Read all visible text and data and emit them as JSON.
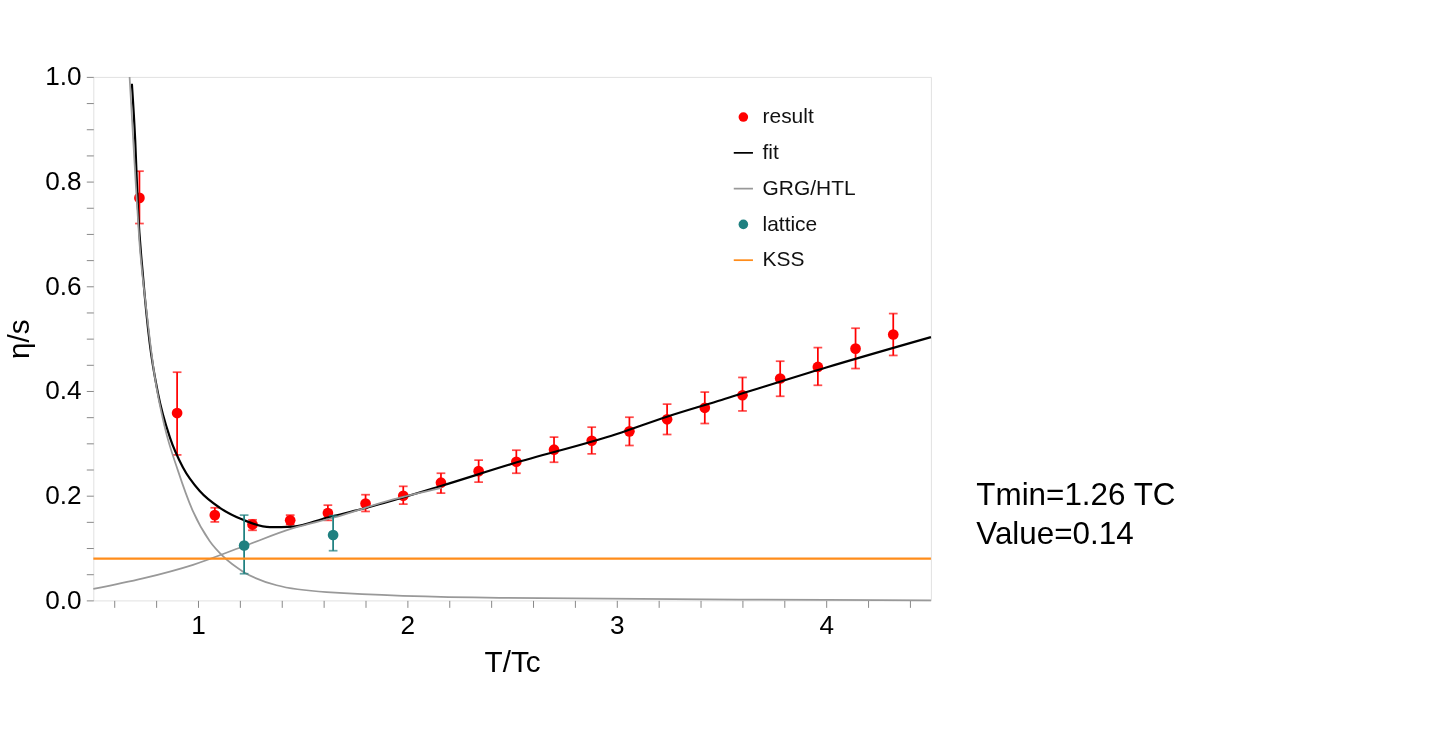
{
  "chart_data": {
    "type": "line",
    "xlabel": "T/Tc",
    "ylabel": "η/s",
    "xlim": [
      0.5,
      4.5
    ],
    "ylim": [
      0,
      1.0
    ],
    "xticks": [
      {
        "value": 0.6,
        "label": null
      },
      {
        "value": 0.8,
        "label": null
      },
      1,
      {
        "value": 1.2,
        "label": null
      },
      {
        "value": 1.4,
        "label": null
      },
      {
        "value": 1.6,
        "label": null
      },
      {
        "value": 1.8,
        "label": null
      },
      2,
      {
        "value": 2.2,
        "label": null
      },
      {
        "value": 2.4,
        "label": null
      },
      {
        "value": 2.6,
        "label": null
      },
      {
        "value": 2.8,
        "label": null
      },
      3,
      {
        "value": 3.2,
        "label": null
      },
      {
        "value": 3.4,
        "label": null
      },
      {
        "value": 3.6,
        "label": null
      },
      {
        "value": 3.8,
        "label": null
      },
      4,
      {
        "value": 4.2,
        "label": null
      },
      {
        "value": 4.4,
        "label": null
      }
    ],
    "yticks": [
      {
        "value": 0,
        "label": "0.0"
      },
      {
        "value": 0.05,
        "label": null
      },
      {
        "value": 0.1,
        "label": null
      },
      {
        "value": 0.15,
        "label": null
      },
      0.2,
      {
        "value": 0.25,
        "label": null
      },
      {
        "value": 0.3,
        "label": null
      },
      {
        "value": 0.35,
        "label": null
      },
      0.4,
      {
        "value": 0.45,
        "label": null
      },
      {
        "value": 0.5,
        "label": null
      },
      {
        "value": 0.55,
        "label": null
      },
      0.6,
      {
        "value": 0.65,
        "label": null
      },
      {
        "value": 0.7,
        "label": null
      },
      {
        "value": 0.75,
        "label": null
      },
      0.8,
      {
        "value": 0.85,
        "label": null
      },
      {
        "value": 0.9,
        "label": null
      },
      {
        "value": 0.95,
        "label": null
      },
      {
        "value": 1.0,
        "label": "1.0"
      }
    ],
    "grid": false,
    "legend": "top right",
    "line_style": "solid",
    "series": [
      {
        "name": "result",
        "type": "scatter",
        "marker": "circle",
        "color": "#ff0000",
        "x": [
          0.72,
          0.9,
          1.08,
          1.26,
          1.44,
          1.62,
          1.8,
          1.98,
          2.16,
          2.34,
          2.52,
          2.7,
          2.88,
          3.06,
          3.24,
          3.42,
          3.6,
          3.78,
          3.96,
          4.14,
          4.32
        ],
        "values": [
          0.769,
          0.358,
          0.163,
          0.145,
          0.153,
          0.167,
          0.185,
          0.2,
          0.225,
          0.247,
          0.265,
          0.288,
          0.305,
          0.323,
          0.346,
          0.368,
          0.392,
          0.424,
          0.446,
          0.481,
          0.508
        ],
        "errors": [
          [
            0.72,
            0.82
          ],
          [
            0.278,
            0.436
          ],
          [
            0.15,
            0.177
          ],
          [
            0.134,
            0.154
          ],
          [
            0.145,
            0.163
          ],
          [
            0.153,
            0.182
          ],
          [
            0.17,
            0.202
          ],
          [
            0.184,
            0.218
          ],
          [
            0.205,
            0.243
          ],
          [
            0.226,
            0.268
          ],
          [
            0.243,
            0.287
          ],
          [
            0.264,
            0.312
          ],
          [
            0.28,
            0.331
          ],
          [
            0.296,
            0.35
          ],
          [
            0.317,
            0.375
          ],
          [
            0.338,
            0.398
          ],
          [
            0.362,
            0.426
          ],
          [
            0.39,
            0.457
          ],
          [
            0.411,
            0.483
          ],
          [
            0.443,
            0.52
          ],
          [
            0.468,
            0.548
          ]
        ]
      },
      {
        "name": "fit",
        "color": "#000000",
        "x": [
          0.684,
          0.7,
          0.713,
          0.737,
          0.769,
          0.809,
          0.865,
          0.928,
          1.008,
          1.104,
          1.215,
          1.343,
          1.454,
          1.614,
          1.805,
          2.163,
          2.5,
          3.0,
          3.239,
          3.5,
          4.0,
          4.5
        ],
        "values": [
          0.987,
          0.878,
          0.749,
          0.62,
          0.492,
          0.395,
          0.312,
          0.254,
          0.209,
          0.177,
          0.154,
          0.14,
          0.141,
          0.158,
          0.177,
          0.219,
          0.261,
          0.318,
          0.351,
          0.383,
          0.445,
          0.503
        ]
      },
      {
        "name": "GRG/HTL",
        "color": "#999999",
        "x": [
          0.673,
          0.7,
          0.72,
          0.753,
          0.793,
          0.841,
          0.904,
          0.976,
          1.056,
          1.12,
          1.215,
          1.375,
          1.614,
          2.44,
          4.0,
          4.5
        ],
        "values": [
          1.0,
          0.813,
          0.685,
          0.556,
          0.428,
          0.331,
          0.248,
          0.17,
          0.113,
          0.084,
          0.055,
          0.029,
          0.016,
          0.005,
          0.001,
          0.0
        ]
      },
      {
        "color": "#999999",
        "x": [
          0.5,
          0.737,
          0.976,
          1.215,
          1.454,
          1.645,
          1.932,
          2.163
        ],
        "values": [
          0.022,
          0.042,
          0.068,
          0.103,
          0.138,
          0.158,
          0.193,
          0.215
        ]
      },
      {
        "name": "lattice",
        "type": "scatter",
        "marker": "circle",
        "color": "#1f8080",
        "x": [
          1.22,
          1.645
        ],
        "values": [
          0.105,
          0.125
        ],
        "errors": [
          [
            0.051,
            0.163
          ],
          [
            0.095,
            0.162
          ]
        ]
      }
    ],
    "ref_lines": [
      {
        "axis": "y",
        "value": 0.08,
        "label": "KSS",
        "color": "#ff8c1a",
        "line_style": "solid"
      }
    ],
    "annotations": [
      "Tmin=1.26 TC",
      "Value=0.14"
    ]
  }
}
